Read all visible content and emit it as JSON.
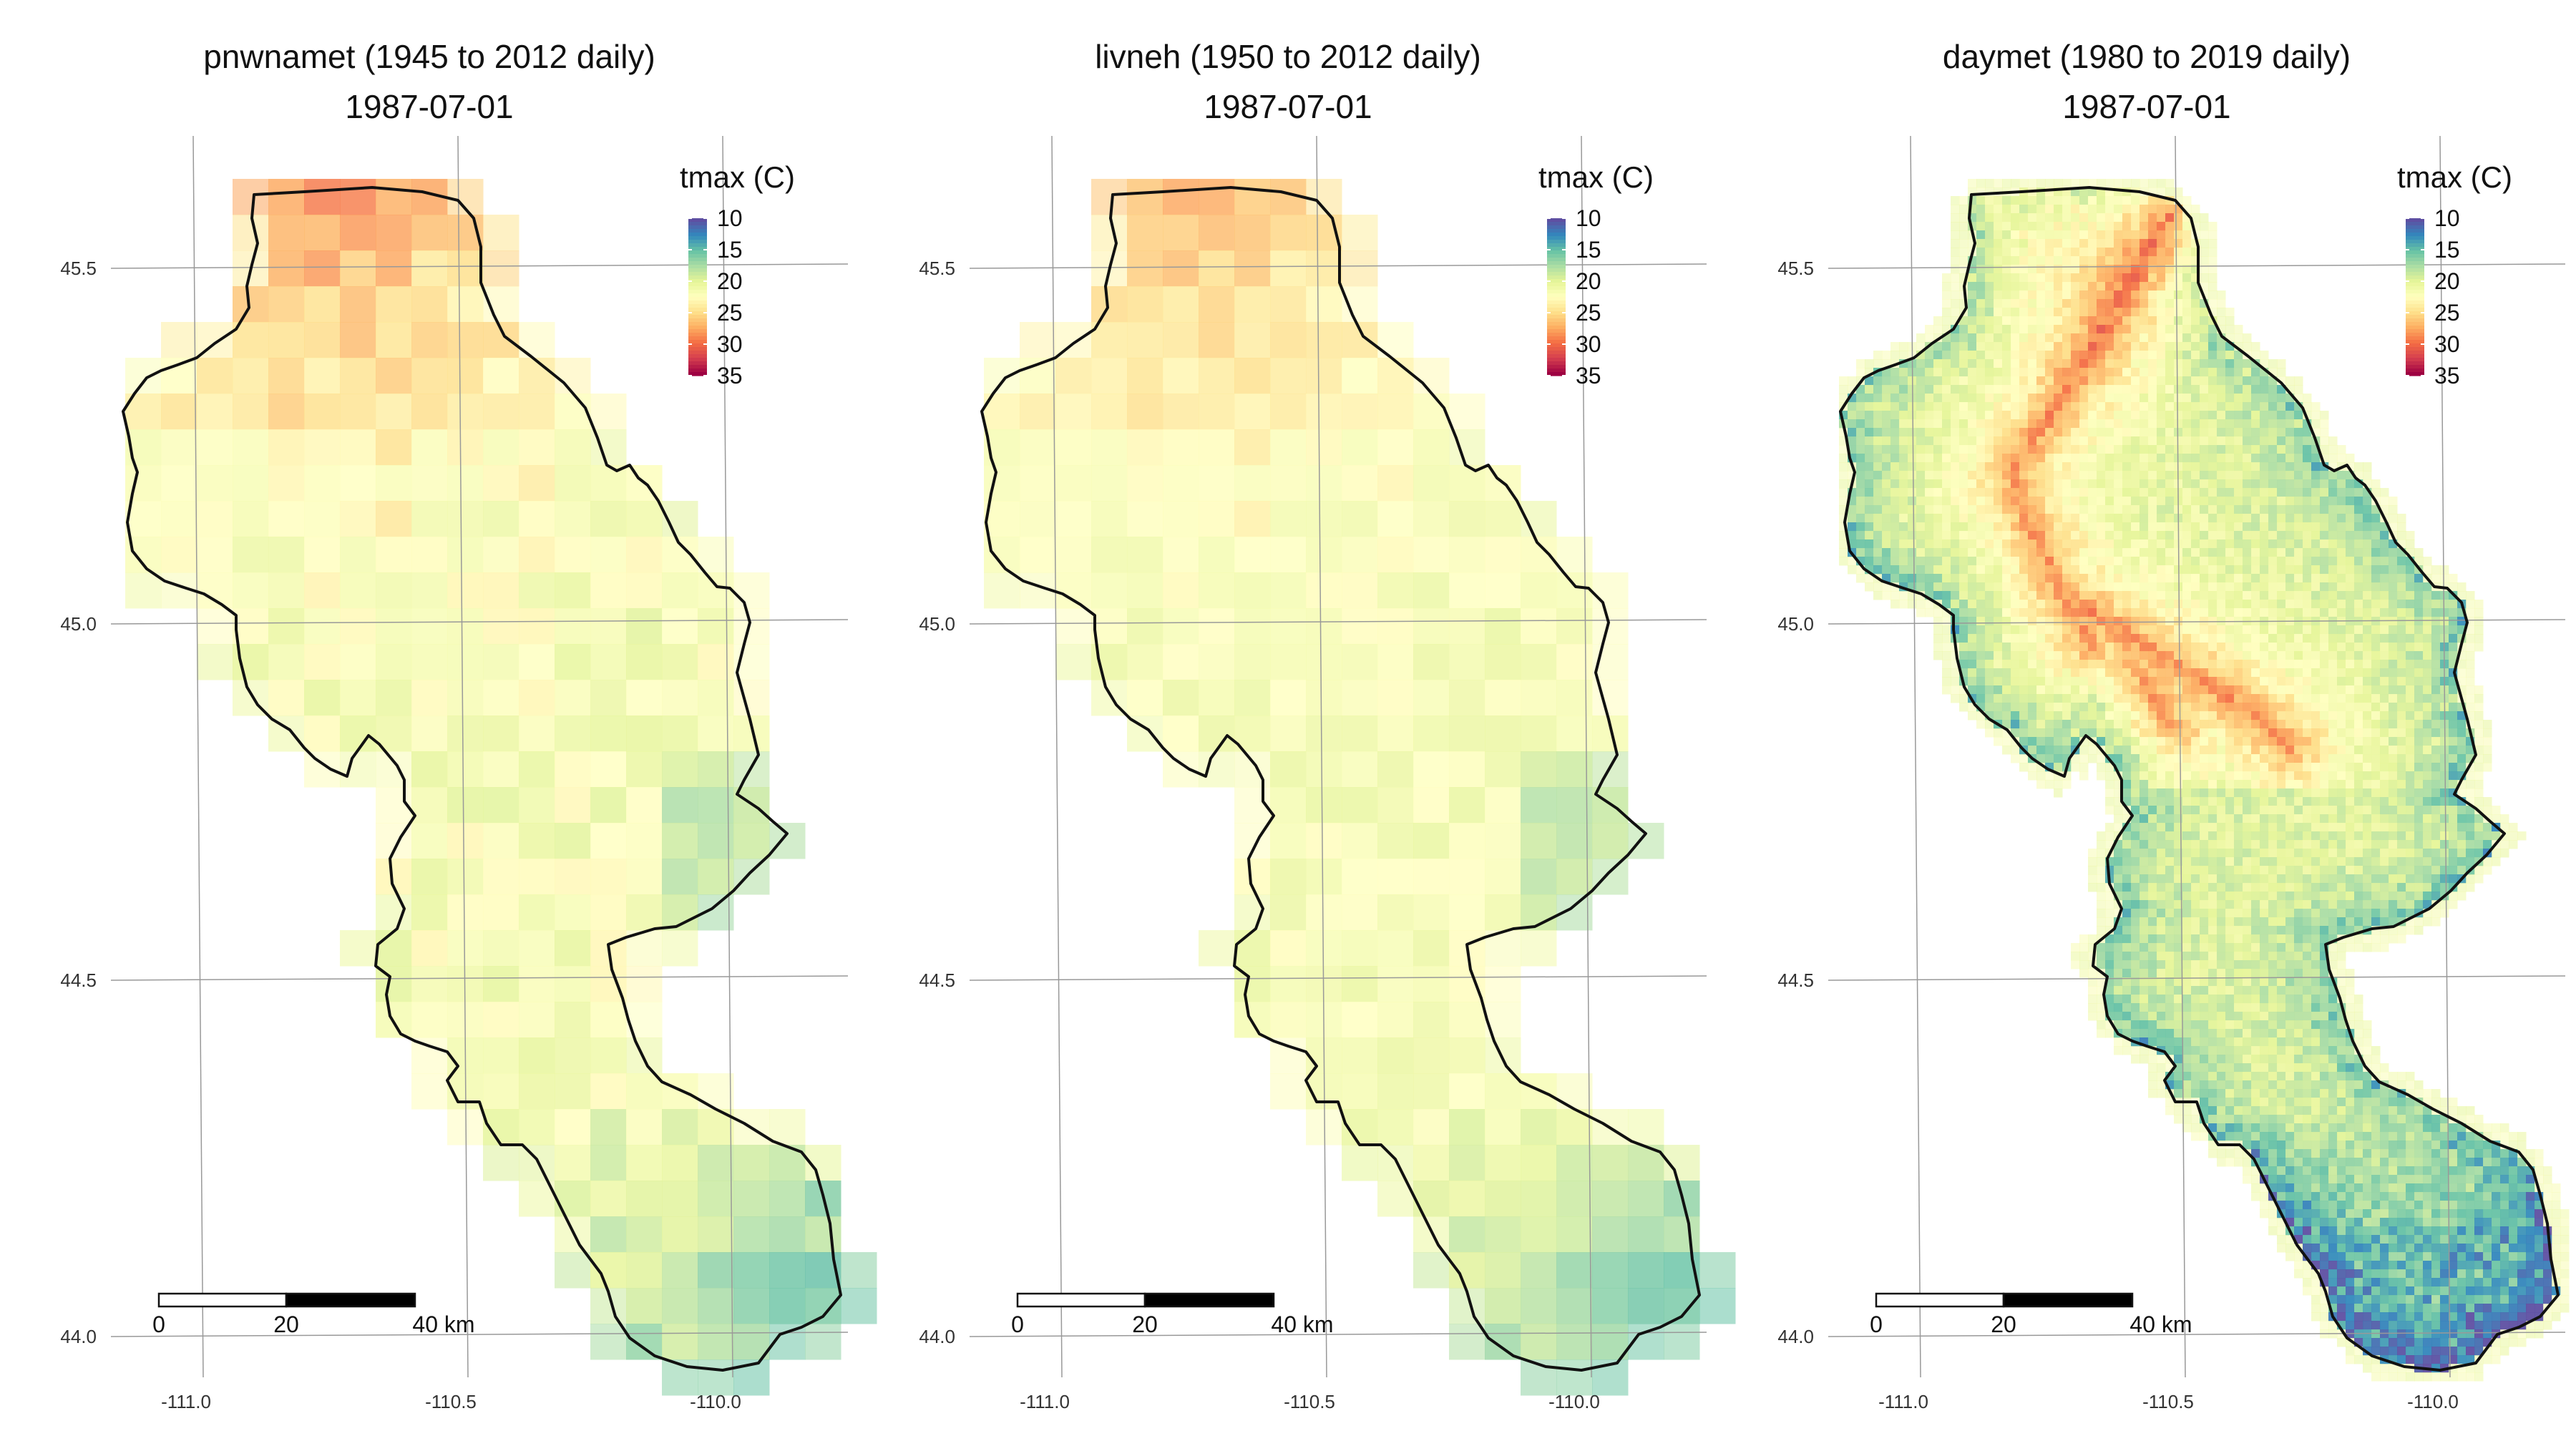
{
  "panels": [
    {
      "id": "pnwnamet",
      "title_line1": "pnwnamet (1945 to 2012 daily)",
      "title_line2": "1987-07-01",
      "legend_title": "tmax (C)",
      "style": "coarse-warm"
    },
    {
      "id": "livneh",
      "title_line1": "livneh (1950 to 2012 daily)",
      "title_line2": "1987-07-01",
      "legend_title": "tmax (C)",
      "style": "coarse-mild"
    },
    {
      "id": "daymet",
      "title_line1": "daymet (1980 to 2019 daily)",
      "title_line2": "1987-07-01",
      "legend_title": "tmax (C)",
      "style": "fine"
    }
  ],
  "legend_values": [
    "10",
    "15",
    "20",
    "25",
    "30",
    "35"
  ],
  "palette": [
    "#5e4fa2",
    "#3288bd",
    "#66c2a5",
    "#abdda4",
    "#e6f598",
    "#ffffbf",
    "#fee08b",
    "#fdae61",
    "#f46d43",
    "#d53e4f",
    "#9e0142"
  ],
  "lat_ticks": [
    "45.5",
    "45.0",
    "44.5",
    "44.0"
  ],
  "lon_ticks": [
    "-111.0",
    "-110.5",
    "-110.0"
  ],
  "scalebar_labels": [
    "0",
    "20",
    "40 km"
  ]
}
